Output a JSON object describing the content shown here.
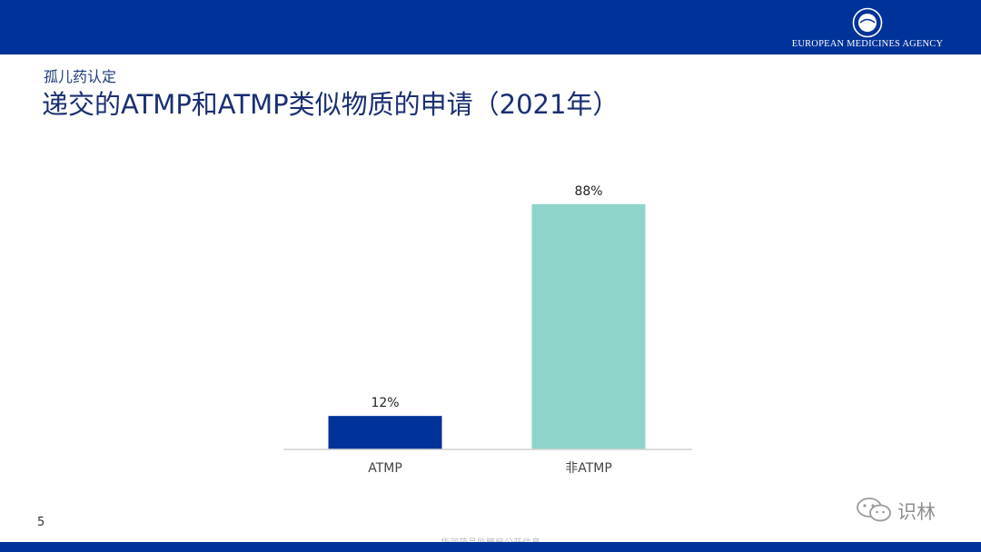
{
  "header": {
    "agency_name": "EUROPEAN MEDICINES AGENCY",
    "logo_icon": "ema-logo-icon",
    "bar_color": "#003399"
  },
  "slide": {
    "subtitle": "孤儿药认定",
    "title": "递交的ATMP和ATMP类似物质的申请（2021年）",
    "page_number": "5"
  },
  "chart_data": {
    "type": "bar",
    "categories": [
      "ATMP",
      "非ATMP"
    ],
    "values": [
      12,
      88
    ],
    "data_labels": [
      "12%",
      "88%"
    ],
    "colors": [
      "#003399",
      "#8fd4cb"
    ],
    "ylim": [
      0,
      100
    ],
    "grid": false,
    "legend": "none"
  },
  "watermark": {
    "icon": "wechat-icon",
    "text": "识林"
  },
  "footer": {
    "note": "华润药品监管局公开信息"
  }
}
